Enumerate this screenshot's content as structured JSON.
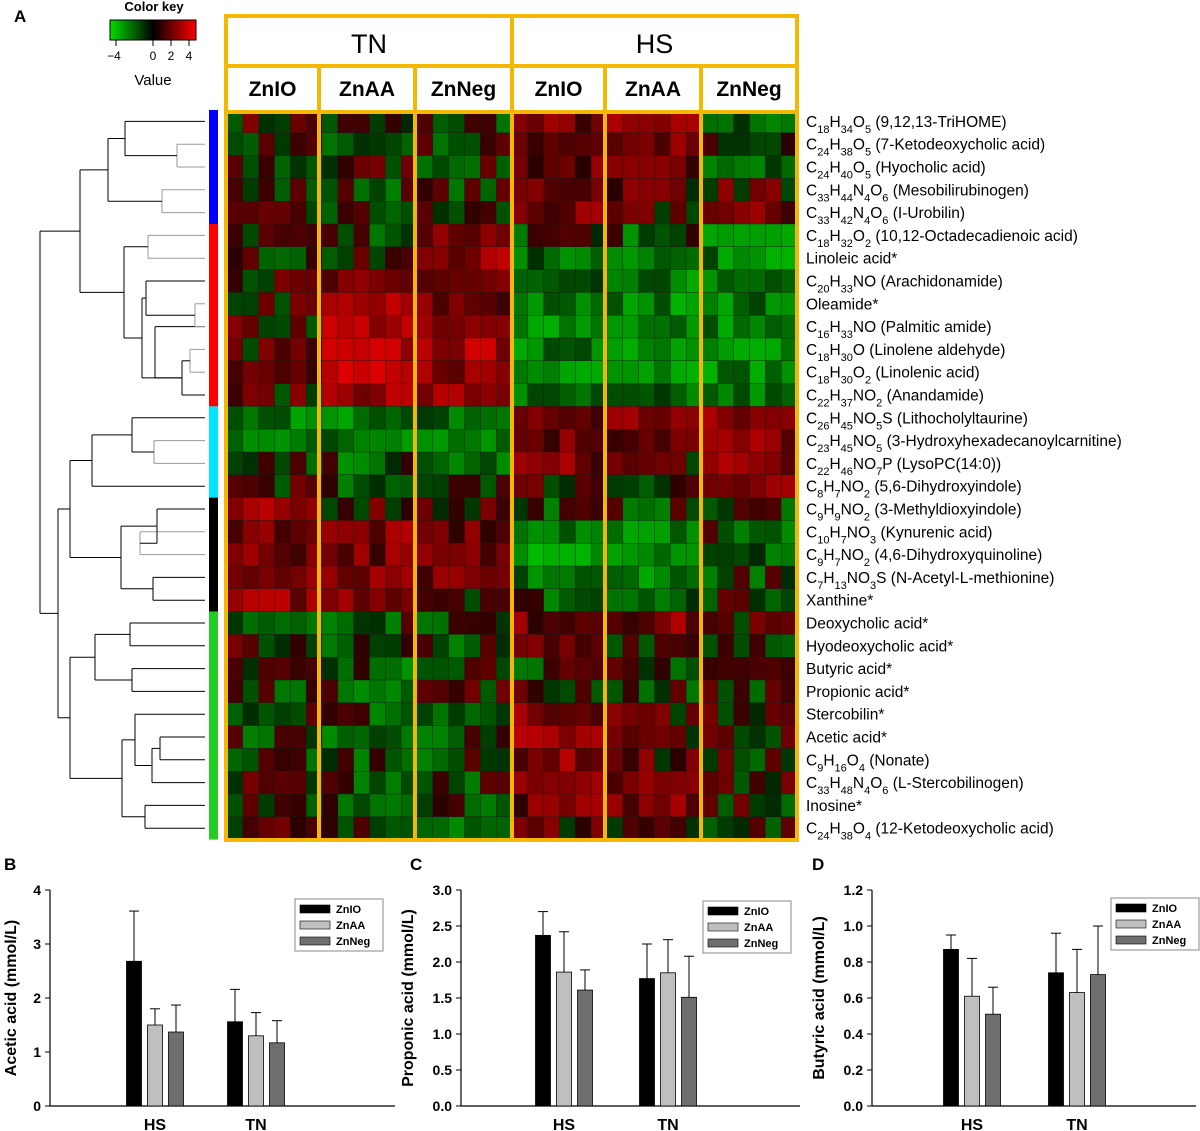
{
  "panel_labels": {
    "a": "A",
    "b": "B",
    "c": "C",
    "d": "D"
  },
  "color_key": {
    "title": "Color key",
    "ticks": [
      "−4",
      "0",
      "2",
      "4"
    ],
    "label": "Value",
    "low_color": "#00cc00",
    "mid_color": "#000000",
    "high_color": "#ff0000"
  },
  "conditions": [
    "TN",
    "HS"
  ],
  "groups": [
    "ZnIO",
    "ZnAA",
    "ZnNeg",
    "ZnIO",
    "ZnAA",
    "ZnNeg"
  ],
  "cluster_colors": [
    "#0000ff",
    "#ff0000",
    "#00e5ff",
    "#000000",
    "#22cc22"
  ],
  "cluster_sizes": [
    5,
    8,
    4,
    5,
    10
  ],
  "box_color": "#f5b800",
  "chart_data": [
    {
      "type": "heatmap",
      "rows": [
        {
          "base": "C",
          "sub": [
            "18",
            "34",
            "5"
          ],
          "els": [
            "H",
            "O"
          ],
          "name": "(9,12,13-TriHOME)",
          "label": "C18H34O5 (9,12,13-TriHOME)"
        },
        {
          "base": "C",
          "sub": [
            "24",
            "38",
            "5"
          ],
          "els": [
            "H",
            "O"
          ],
          "name": "(7-Ketodeoxycholic acid)",
          "label": "C24H38O5 (7-Ketodeoxycholic acid)"
        },
        {
          "base": "C",
          "sub": [
            "24",
            "40",
            "5"
          ],
          "els": [
            "H",
            "O"
          ],
          "name": "(Hyocholic acid)",
          "label": "C24H40O5 (Hyocholic acid)"
        },
        {
          "base": "C",
          "sub": [
            "33",
            "44",
            "4",
            "6"
          ],
          "els": [
            "H",
            "N",
            "O"
          ],
          "name": "(Mesobilirubinogen)",
          "label": "C33H44N4O6 (Mesobilirubinogen)"
        },
        {
          "base": "C",
          "sub": [
            "33",
            "42",
            "4",
            "6"
          ],
          "els": [
            "H",
            "N",
            "O"
          ],
          "name": "(I-Urobilin)",
          "label": "C33H42N4O6 (I-Urobilin)"
        },
        {
          "base": "C",
          "sub": [
            "18",
            "32",
            "2"
          ],
          "els": [
            "H",
            "O"
          ],
          "name": "(10,12-Octadecadienoic acid)",
          "label": "C18H32O2 (10,12-Octadecadienoic acid)"
        },
        {
          "plain": "Linoleic acid*",
          "label": "Linoleic acid*"
        },
        {
          "base": "C",
          "sub": [
            "20",
            "33",
            ""
          ],
          "els": [
            "H",
            "NO"
          ],
          "name": "(Arachidonamide)",
          "label": "C20H33NO (Arachidonamide)"
        },
        {
          "plain": "Oleamide*",
          "label": "Oleamide*"
        },
        {
          "base": "C",
          "sub": [
            "16",
            "33",
            ""
          ],
          "els": [
            "H",
            "NO"
          ],
          "name": "(Palmitic amide)",
          "label": "C16H33NO (Palmitic amide)"
        },
        {
          "base": "C",
          "sub": [
            "18",
            "30",
            ""
          ],
          "els": [
            "H",
            "O"
          ],
          "name": "(Linolene aldehyde)",
          "label": "C18H30O (Linolene aldehyde)"
        },
        {
          "base": "C",
          "sub": [
            "18",
            "30",
            "2"
          ],
          "els": [
            "H",
            "O"
          ],
          "name": "(Linolenic acid)",
          "label": "C18H30O2 (Linolenic acid)"
        },
        {
          "base": "C",
          "sub": [
            "22",
            "37",
            "2"
          ],
          "els": [
            "H",
            "NO"
          ],
          "name": "(Anandamide)",
          "label": "C22H37NO2 (Anandamide)"
        },
        {
          "base": "C",
          "sub": [
            "26",
            "45",
            "5"
          ],
          "els": [
            "H",
            "NO"
          ],
          "tail": "S",
          "name": "(Lithocholyltaurine)",
          "label": "C26H45NO5S (Lithocholyltaurine)"
        },
        {
          "base": "C",
          "sub": [
            "23",
            "45",
            "5"
          ],
          "els": [
            "H",
            "NO"
          ],
          "name": "(3-Hydroxyhexadecanoylcarnitine)",
          "label": "C23H45NO5 (3-Hydroxyhexadecanoylcarnitine)"
        },
        {
          "base": "C",
          "sub": [
            "22",
            "46",
            "7"
          ],
          "els": [
            "H",
            "NO"
          ],
          "tail": "P",
          "name": "(LysoPC(14:0))",
          "label": "C22H46NO7P (LysoPC(14:0))"
        },
        {
          "base": "C",
          "sub": [
            "8",
            "7",
            "2"
          ],
          "els": [
            "H",
            "NO"
          ],
          "name": "(5,6-Dihydroxyindole)",
          "label": "C8H7NO2 (5,6-Dihydroxyindole)"
        },
        {
          "base": "C",
          "sub": [
            "9",
            "9",
            "2"
          ],
          "els": [
            "H",
            "NO"
          ],
          "name": "(3-Methyldioxyindole)",
          "label": "C9H9NO2 (3-Methyldioxyindole)"
        },
        {
          "base": "C",
          "sub": [
            "10",
            "7",
            "3"
          ],
          "els": [
            "H",
            "NO"
          ],
          "name": "(Kynurenic acid)",
          "label": "C10H7NO3 (Kynurenic acid)"
        },
        {
          "base": "C",
          "sub": [
            "9",
            "7",
            "2"
          ],
          "els": [
            "H",
            "NO"
          ],
          "name": "(4,6-Dihydroxyquinoline)",
          "label": "C9H7NO2 (4,6-Dihydroxyquinoline)"
        },
        {
          "base": "C",
          "sub": [
            "7",
            "13",
            "3"
          ],
          "els": [
            "H",
            "NO"
          ],
          "tail": "S",
          "name": "(N-Acetyl-L-methionine)",
          "label": "C7H13NO3S (N-Acetyl-L-methionine)"
        },
        {
          "plain": "Xanthine*",
          "label": "Xanthine*"
        },
        {
          "plain": "Deoxycholic acid*",
          "label": "Deoxycholic acid*"
        },
        {
          "plain": "Hyodeoxycholic acid*",
          "label": "Hyodeoxycholic acid*"
        },
        {
          "plain": "Butyric acid*",
          "label": "Butyric acid*"
        },
        {
          "plain": "Propionic acid*",
          "label": "Propionic acid*"
        },
        {
          "plain": "Stercobilin*",
          "label": "Stercobilin*"
        },
        {
          "plain": "Acetic acid*",
          "label": "Acetic acid*"
        },
        {
          "base": "C",
          "sub": [
            "9",
            "16",
            "4"
          ],
          "els": [
            "H",
            "O"
          ],
          "name": "(Nonate)",
          "label": "C9H16O4 (Nonate)"
        },
        {
          "base": "C",
          "sub": [
            "33",
            "48",
            "4",
            "6"
          ],
          "els": [
            "H",
            "N",
            "O"
          ],
          "name": "(L-Stercobilinogen)",
          "label": "C33H48N4O6 (L-Stercobilinogen)"
        },
        {
          "plain": "Inosine*",
          "label": "Inosine*"
        },
        {
          "base": "C",
          "sub": [
            "24",
            "38",
            "4"
          ],
          "els": [
            "H",
            "O"
          ],
          "name": "(12-Ketodeoxycholic acid)",
          "label": "C24H38O4 (12-Ketodeoxycholic acid)"
        }
      ],
      "columns_per_group": 6,
      "group_means": [
        [
          0.4,
          -0.3,
          -0.2,
          1.0,
          1.2,
          -0.8
        ],
        [
          -0.3,
          -0.2,
          -0.2,
          0.9,
          1.0,
          -0.4
        ],
        [
          -0.3,
          0.3,
          -0.2,
          0.8,
          0.6,
          -0.4
        ],
        [
          -0.2,
          -0.3,
          -0.2,
          1.0,
          1.0,
          0.6
        ],
        [
          -0.2,
          -0.3,
          -0.2,
          0.9,
          0.4,
          0.9
        ],
        [
          0.3,
          -0.2,
          1.2,
          -0.4,
          -0.8,
          -1.2
        ],
        [
          -0.2,
          -0.2,
          1.6,
          -1.0,
          -1.0,
          -1.4
        ],
        [
          0.3,
          0.6,
          0.9,
          -1.2,
          -1.4,
          -1.5
        ],
        [
          0.3,
          1.8,
          0.9,
          -1.4,
          -1.4,
          -1.2
        ],
        [
          0.4,
          2.2,
          0.9,
          -1.4,
          -1.4,
          -1.4
        ],
        [
          0.4,
          2.2,
          2.0,
          -1.4,
          -1.4,
          -1.4
        ],
        [
          0.4,
          2.2,
          1.6,
          -1.4,
          -1.5,
          -1.4
        ],
        [
          0.4,
          2.0,
          1.6,
          -1.2,
          -1.2,
          -1.2
        ],
        [
          -1.2,
          -1.2,
          -1.0,
          0.8,
          1.4,
          1.2
        ],
        [
          -1.0,
          -1.2,
          -1.0,
          1.0,
          1.0,
          1.4
        ],
        [
          -0.6,
          -0.8,
          -1.0,
          1.2,
          0.6,
          1.2
        ],
        [
          0.3,
          -1.0,
          0.3,
          0.4,
          0.2,
          1.0
        ],
        [
          1.4,
          0.6,
          0.6,
          -0.4,
          -0.4,
          -0.2
        ],
        [
          1.2,
          1.2,
          0.8,
          -1.6,
          -1.4,
          -0.6
        ],
        [
          1.2,
          1.2,
          0.8,
          -1.6,
          -1.3,
          -0.8
        ],
        [
          1.0,
          1.0,
          0.8,
          -1.2,
          -1.2,
          -0.4
        ],
        [
          1.6,
          1.6,
          0.6,
          -0.6,
          -0.4,
          -0.2
        ],
        [
          -0.6,
          -0.4,
          -0.3,
          1.0,
          1.2,
          0.3
        ],
        [
          0.2,
          -0.6,
          -0.4,
          0.6,
          0.4,
          0.2
        ],
        [
          -0.2,
          -0.8,
          0.3,
          -0.2,
          -0.2,
          0.2
        ],
        [
          -0.2,
          -0.6,
          0.3,
          0.2,
          -0.2,
          0.0
        ],
        [
          -0.3,
          -0.6,
          -0.4,
          1.4,
          0.6,
          0.3
        ],
        [
          -0.4,
          -0.8,
          -0.6,
          1.6,
          0.6,
          0.2
        ],
        [
          -0.3,
          -0.4,
          -0.4,
          1.4,
          0.6,
          0.0
        ],
        [
          0.2,
          -0.4,
          -0.3,
          1.2,
          0.8,
          0.2
        ],
        [
          0.2,
          -0.3,
          -0.4,
          1.0,
          1.0,
          0.0
        ],
        [
          0.3,
          -0.6,
          -0.6,
          0.6,
          0.3,
          0.0
        ]
      ],
      "value_range": [
        -4,
        4
      ]
    },
    {
      "type": "bar",
      "categories": [
        "HS",
        "TN"
      ],
      "series": [
        {
          "name": "ZnIO",
          "values": [
            2.68,
            1.56
          ],
          "errors": [
            0.93,
            0.6
          ]
        },
        {
          "name": "ZnAA",
          "values": [
            1.5,
            1.3
          ],
          "errors": [
            0.3,
            0.43
          ]
        },
        {
          "name": "ZnNeg",
          "values": [
            1.37,
            1.17
          ],
          "errors": [
            0.5,
            0.41
          ]
        }
      ],
      "xlabel": "",
      "ylabel": "Acetic acid (mmol/L)",
      "ylim": [
        0,
        4
      ],
      "yticks": [
        "0",
        "1",
        "2",
        "3",
        "4"
      ],
      "legend": "top-right",
      "colors": [
        "#000000",
        "#bfbfbf",
        "#6e6e6e"
      ]
    },
    {
      "type": "bar",
      "categories": [
        "HS",
        "TN"
      ],
      "series": [
        {
          "name": "ZnIO",
          "values": [
            2.37,
            1.77
          ],
          "errors": [
            0.33,
            0.48
          ]
        },
        {
          "name": "ZnAA",
          "values": [
            1.86,
            1.85
          ],
          "errors": [
            0.56,
            0.46
          ]
        },
        {
          "name": "ZnNeg",
          "values": [
            1.61,
            1.51
          ],
          "errors": [
            0.28,
            0.57
          ]
        }
      ],
      "xlabel": "",
      "ylabel": "Proponic acid (mmol/L)",
      "ylim": [
        0,
        3
      ],
      "yticks": [
        "0.0",
        "0.5",
        "1.0",
        "1.5",
        "2.0",
        "2.5",
        "3.0"
      ],
      "legend": "top-right",
      "colors": [
        "#000000",
        "#bfbfbf",
        "#6e6e6e"
      ]
    },
    {
      "type": "bar",
      "categories": [
        "HS",
        "TN"
      ],
      "series": [
        {
          "name": "ZnIO",
          "values": [
            0.87,
            0.74
          ],
          "errors": [
            0.08,
            0.22
          ]
        },
        {
          "name": "ZnAA",
          "values": [
            0.61,
            0.63
          ],
          "errors": [
            0.21,
            0.24
          ]
        },
        {
          "name": "ZnNeg",
          "values": [
            0.51,
            0.73
          ],
          "errors": [
            0.15,
            0.27
          ]
        }
      ],
      "xlabel": "",
      "ylabel": "Butyric acid (mmol/L)",
      "ylim": [
        0,
        1.2
      ],
      "yticks": [
        "0.0",
        "0.2",
        "0.4",
        "0.6",
        "0.8",
        "1.0",
        "1.2"
      ],
      "legend": "top-right",
      "colors": [
        "#000000",
        "#bfbfbf",
        "#6e6e6e"
      ]
    }
  ]
}
